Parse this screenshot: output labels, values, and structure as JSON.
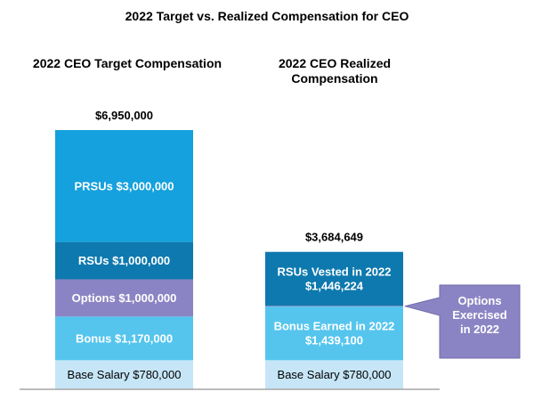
{
  "title": "2022 Target vs. Realized Compensation for CEO",
  "chart_data": {
    "type": "bar",
    "stacked": true,
    "grid": false,
    "legend": "none",
    "ylim": [
      0,
      7000000
    ],
    "categories": [
      {
        "header": [
          "2022 CEO Target Compensation"
        ],
        "total_label": "$6,950,000",
        "total": 6950000,
        "segments": [
          {
            "lines": [
              "Base Salary $780,000"
            ],
            "value": 780000,
            "color": "#c6e6f7",
            "text_color": "dark"
          },
          {
            "lines": [
              "Bonus  $1,170,000"
            ],
            "value": 1170000,
            "color": "#55c5ee",
            "text_color": "light"
          },
          {
            "lines": [
              "Options  $1,000,000"
            ],
            "value": 1000000,
            "color": "#8b84c4",
            "text_color": "light"
          },
          {
            "lines": [
              "RSUs  $1,000,000"
            ],
            "value": 1000000,
            "color": "#0e79ae",
            "text_color": "light"
          },
          {
            "lines": [
              "PRSUs  $3,000,000"
            ],
            "value": 3000000,
            "color": "#15a1dd",
            "text_color": "light"
          }
        ]
      },
      {
        "header": [
          "2022 CEO Realized",
          "Compensation"
        ],
        "total_label": "$3,684,649",
        "total": 3684649,
        "segments": [
          {
            "lines": [
              "Base Salary $780,000"
            ],
            "value": 780000,
            "color": "#c6e6f7",
            "text_color": "dark"
          },
          {
            "lines": [
              "Bonus Earned in 2022",
              "$1,439,100"
            ],
            "value": 1439100,
            "color": "#55c5ee",
            "text_color": "light"
          },
          {
            "lines": [],
            "value": 19325,
            "color": "#8b84c4",
            "text_color": "light"
          },
          {
            "lines": [
              "RSUs Vested in 2022",
              "$1,446,224"
            ],
            "value": 1446224,
            "color": "#0e79ae",
            "text_color": "light"
          }
        ]
      }
    ],
    "callout": {
      "lines": [
        "Options",
        "Exercised",
        "in 2022"
      ],
      "color": "#8b84c4",
      "points_to": "Options"
    }
  }
}
